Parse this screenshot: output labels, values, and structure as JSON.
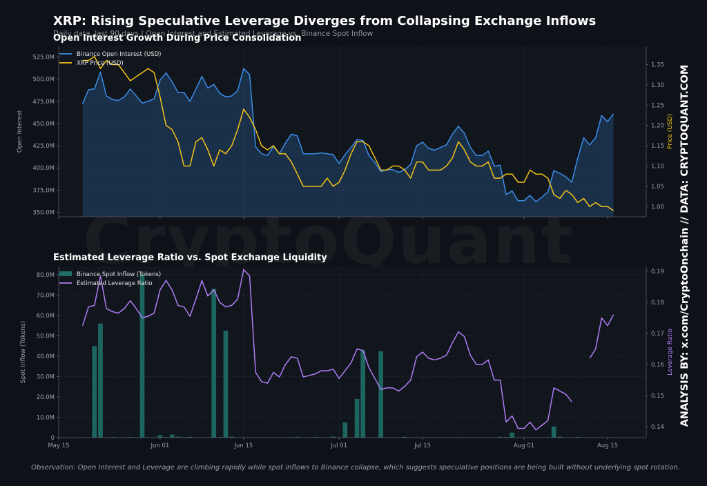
{
  "header": {
    "title": "XRP: Rising Speculative Leverage Diverges from Collapsing Exchange Inflows",
    "subtitle": "Daily data, last 90 days  |  Open Interest and Estimated Leverage vs. Binance Spot Inflow"
  },
  "watermark": "CryptoQuant",
  "side_credit": "ANALYSIS BY: x.com/CryptoOnchain   //   DATA: CRYPTOQUANT.COM",
  "footnote": "Observation: Open Interest and Leverage are climbing rapidly while spot inflows to Binance collapse, which suggests speculative positions are being built without underlying spot rotation.",
  "colors": {
    "open_interest": "#3b8eea",
    "price": "#f5c518",
    "inflow": "#1f6f68",
    "leverage": "#b07ef7"
  },
  "chart_data": [
    {
      "type": "line",
      "title": "Open Interest Growth During Price Consolidation",
      "x_start": "2025-05-19",
      "x_ticks": [
        "May 15",
        "Jun 01",
        "Jun 15",
        "Jul 01",
        "Jul 15",
        "Aug 01",
        "Aug 15"
      ],
      "ylabel": "Open Interest",
      "y2label": "Price (USD)",
      "y_ticks": [
        "350.0M",
        "375.0M",
        "400.0M",
        "425.0M",
        "450.0M",
        "475.0M",
        "500.0M",
        "525.0M"
      ],
      "y2_ticks": [
        "1.00",
        "1.05",
        "1.10",
        "1.15",
        "1.20",
        "1.25",
        "1.30",
        "1.35"
      ],
      "ylim": [
        345,
        537
      ],
      "y2lim": [
        0.975,
        1.395
      ],
      "legend": "top-left",
      "series": [
        {
          "name": "Binance Open Interest (USD)",
          "axis": "left",
          "fill": true,
          "values": [
            472,
            488,
            489,
            508,
            481,
            477,
            476,
            480,
            489,
            481,
            473,
            475,
            478,
            499,
            507,
            497,
            485,
            485,
            475,
            489,
            503,
            490,
            494,
            484,
            480,
            481,
            487,
            512,
            505,
            424,
            416,
            414,
            424,
            416,
            428,
            438,
            436,
            416,
            416,
            416,
            417,
            416,
            415,
            405,
            415,
            423,
            432,
            431,
            414,
            406,
            396,
            398,
            398,
            395,
            398,
            404,
            425,
            429,
            422,
            420,
            423,
            426,
            438,
            447,
            439,
            423,
            414,
            414,
            419,
            402,
            403,
            370,
            374,
            363,
            363,
            369,
            362,
            367,
            373,
            397,
            394,
            390,
            384,
            411,
            434,
            426,
            434,
            459,
            452,
            461
          ]
        },
        {
          "name": "XRP Price (USD)",
          "axis": "right",
          "values": [
            1.36,
            1.36,
            1.37,
            1.34,
            1.36,
            1.35,
            1.35,
            1.33,
            1.31,
            1.32,
            1.33,
            1.34,
            1.33,
            1.27,
            1.2,
            1.19,
            1.16,
            1.1,
            1.1,
            1.16,
            1.17,
            1.14,
            1.1,
            1.14,
            1.13,
            1.15,
            1.19,
            1.24,
            1.22,
            1.19,
            1.15,
            1.14,
            1.15,
            1.13,
            1.13,
            1.11,
            1.08,
            1.05,
            1.05,
            1.05,
            1.05,
            1.07,
            1.05,
            1.06,
            1.09,
            1.13,
            1.16,
            1.16,
            1.15,
            1.12,
            1.09,
            1.09,
            1.1,
            1.1,
            1.09,
            1.07,
            1.11,
            1.11,
            1.09,
            1.09,
            1.09,
            1.1,
            1.12,
            1.16,
            1.14,
            1.11,
            1.1,
            1.1,
            1.11,
            1.07,
            1.07,
            1.08,
            1.08,
            1.06,
            1.06,
            1.09,
            1.08,
            1.08,
            1.07,
            1.03,
            1.02,
            1.04,
            1.03,
            1.01,
            1.02,
            1.0,
            1.01,
            1.0,
            1.0,
            0.99
          ]
        }
      ]
    },
    {
      "type": "bar",
      "title": "Estimated Leverage Ratio vs. Spot Exchange Liquidity",
      "x_start": "2025-05-19",
      "x_ticks": [
        "May 15",
        "Jun 01",
        "Jun 15",
        "Jul 01",
        "Jul 15",
        "Aug 01",
        "Aug 15"
      ],
      "ylabel": "Spot Inflow (Tokens)",
      "y2label": "Leverage Ratio",
      "y_ticks": [
        "0",
        "10.0M",
        "20.0M",
        "30.0M",
        "40.0M",
        "50.0M",
        "60.0M",
        "70.0M",
        "80.0M"
      ],
      "y2_ticks": [
        "0.14",
        "0.15",
        "0.16",
        "0.17",
        "0.18",
        "0.19"
      ],
      "ylim": [
        0,
        84
      ],
      "y2lim": [
        0.1365,
        0.1915
      ],
      "legend": "top-left",
      "series": [
        {
          "name": "Binance Spot Inflow (Tokens)",
          "axis": "left",
          "kind": "bar",
          "values": [
            0.1,
            0.1,
            45,
            56,
            0.1,
            0.3,
            0.1,
            0.2,
            0.3,
            0.2,
            80,
            0.1,
            0.2,
            1.2,
            0.3,
            1.5,
            0.5,
            0.3,
            0.4,
            0.1,
            0.2,
            0.1,
            73,
            0.3,
            52.5,
            0.5,
            0.1,
            0.1,
            0.1,
            0.2,
            0.1,
            0.1,
            0.1,
            0.2,
            0.1,
            0.2,
            0.4,
            0.1,
            0.1,
            0.3,
            0.1,
            0.2,
            0.5,
            0.1,
            7.5,
            0.1,
            19,
            43,
            0.1,
            0.1,
            42.5,
            0.1,
            0.1,
            0.1,
            0.4,
            0.1,
            0.1,
            0.1,
            0.1,
            0.1,
            0.2,
            0.1,
            0.1,
            0.2,
            0.1,
            0.1,
            0.1,
            0.1,
            0.1,
            0.1,
            0.4,
            0.3,
            2.5,
            0.1,
            0.1,
            0.1,
            0.1,
            0.1,
            0.2,
            5.5,
            0.5,
            0.1,
            0.1,
            0.3,
            0.1,
            0.1,
            0.1,
            0.1,
            0.1,
            0.1
          ]
        },
        {
          "name": "Estimated Leverage Ratio",
          "axis": "right",
          "kind": "line",
          "values": [
            0.1725,
            0.1785,
            0.179,
            0.1885,
            0.178,
            0.177,
            0.1765,
            0.178,
            0.1805,
            0.178,
            0.175,
            0.1755,
            0.1765,
            0.184,
            0.187,
            0.184,
            0.179,
            0.1785,
            0.1755,
            0.181,
            0.187,
            0.182,
            0.184,
            0.18,
            0.1785,
            0.179,
            0.181,
            0.1905,
            0.1885,
            0.1575,
            0.1545,
            0.154,
            0.1575,
            0.156,
            0.16,
            0.1625,
            0.162,
            0.156,
            0.1565,
            0.157,
            0.158,
            0.158,
            0.1585,
            0.1555,
            0.158,
            0.1605,
            0.165,
            0.1645,
            0.159,
            0.1555,
            0.152,
            0.1525,
            0.1525,
            0.1515,
            0.153,
            0.155,
            0.1625,
            0.164,
            0.162,
            0.1615,
            0.162,
            0.163,
            0.167,
            0.1705,
            0.169,
            0.163,
            0.16,
            0.16,
            0.1615,
            0.155,
            0.155,
            0.1415,
            0.1435,
            0.1395,
            0.1395,
            0.1415,
            0.139,
            0.1405,
            0.142,
            0.1525,
            0.1515,
            0.1505,
            0.148,
            null,
            null,
            0.162,
            0.165,
            0.175,
            0.1725,
            0.176
          ]
        }
      ]
    }
  ]
}
